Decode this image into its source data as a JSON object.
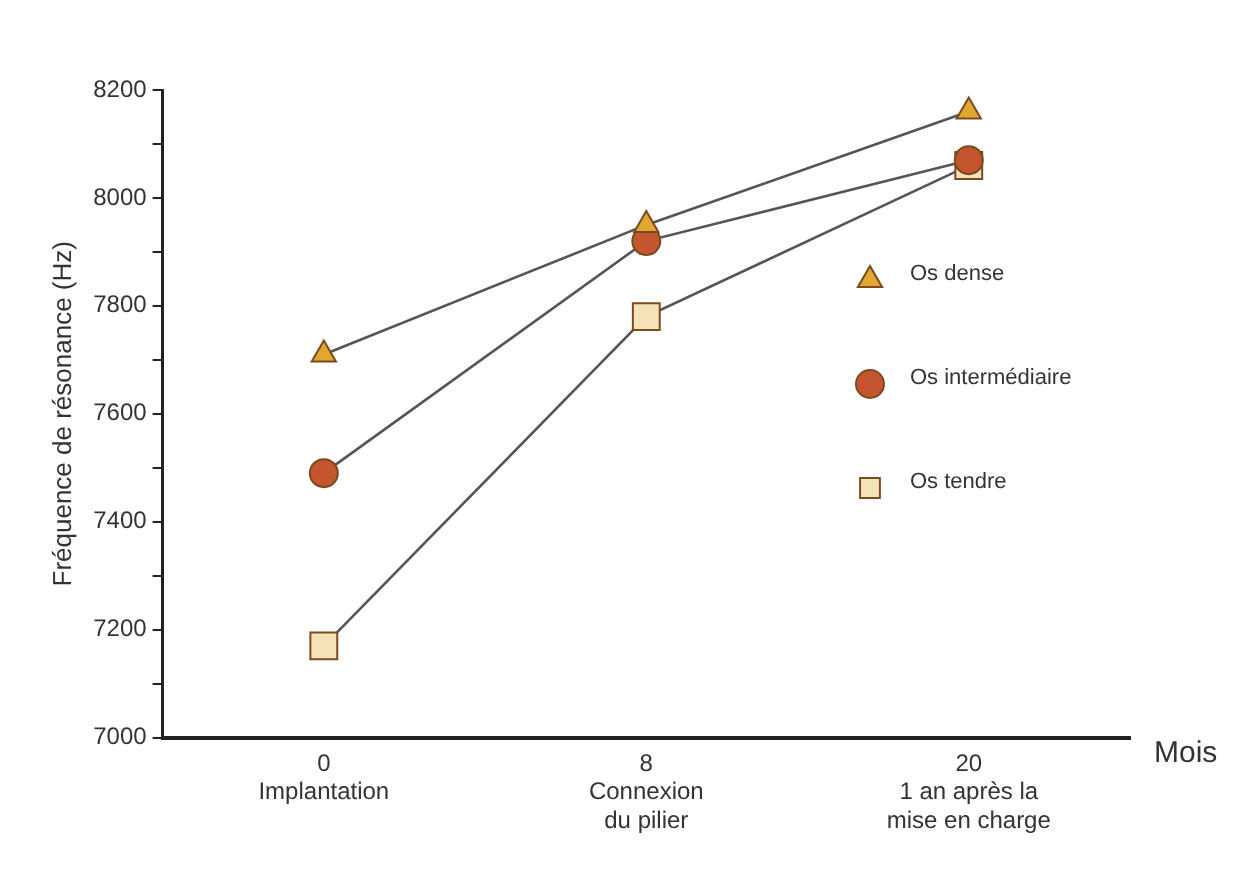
{
  "chart_data": {
    "type": "line",
    "xlabel": "Mois",
    "ylabel": "Fréquence de résonance (Hz)",
    "categories": [
      "0\nImplantation",
      "8\nConnexion\ndu pilier",
      "20\n1 an après la\nmise en charge"
    ],
    "series": [
      {
        "name": "Os dense",
        "color": "#e0a830",
        "marker": "triangle",
        "values": [
          7710,
          7950,
          8160
        ]
      },
      {
        "name": "Os intermédiaire",
        "color": "#c4552e",
        "marker": "circle",
        "values": [
          7490,
          7920,
          8070
        ]
      },
      {
        "name": "Os tendre",
        "color": "#f5e3b8",
        "marker": "square",
        "values": [
          7170,
          7780,
          8060
        ]
      }
    ],
    "ylim": [
      7000,
      8200
    ],
    "yticks": [
      7000,
      {
        "value": 7100,
        "label": null
      },
      7200,
      {
        "value": 7300,
        "label": null
      },
      7400,
      {
        "value": 7500,
        "label": null
      },
      7600,
      {
        "value": 7700,
        "label": null
      },
      7800,
      {
        "value": 7900,
        "label": null
      },
      8000,
      {
        "value": 8100,
        "label": null
      },
      8200
    ],
    "grid": false,
    "legend": "right",
    "line_style": "solid"
  }
}
